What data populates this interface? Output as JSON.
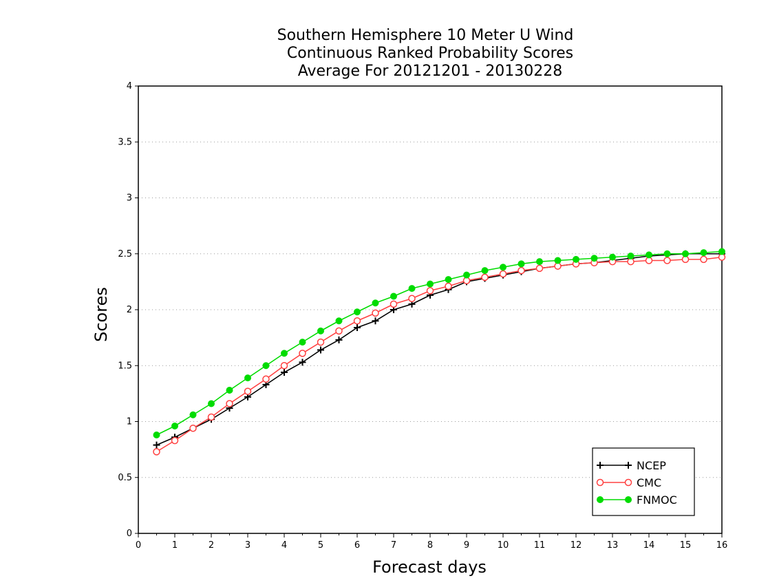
{
  "chart_data": {
    "type": "line",
    "title": [
      "Southern Hemisphere 10 Meter U Wind",
      "Continuous Ranked Probability Scores",
      "Average For 20121201 - 20130228"
    ],
    "xlabel": "Forecast days",
    "ylabel": "Scores",
    "xlim": [
      0,
      16
    ],
    "ylim": [
      0,
      4
    ],
    "x_ticks": [
      0,
      1,
      2,
      3,
      4,
      5,
      6,
      7,
      8,
      9,
      10,
      11,
      12,
      13,
      14,
      15,
      16
    ],
    "y_ticks": [
      0,
      0.5,
      1,
      1.5,
      2,
      2.5,
      3,
      3.5,
      4
    ],
    "grid": "horizontal-dotted",
    "legend_position": "bottom-right",
    "x": [
      0.5,
      1,
      1.5,
      2,
      2.5,
      3,
      3.5,
      4,
      4.5,
      5,
      5.5,
      6,
      6.5,
      7,
      7.5,
      8,
      8.5,
      9,
      9.5,
      10,
      10.5,
      11,
      11.5,
      12,
      12.5,
      13,
      13.5,
      14,
      14.5,
      15,
      15.5,
      16
    ],
    "series": [
      {
        "name": "NCEP",
        "color": "#000000",
        "marker": "plus",
        "values": [
          0.79,
          0.86,
          0.94,
          1.02,
          1.12,
          1.22,
          1.33,
          1.44,
          1.53,
          1.64,
          1.73,
          1.84,
          1.9,
          2.0,
          2.05,
          2.13,
          2.18,
          2.25,
          2.28,
          2.31,
          2.34,
          2.37,
          2.39,
          2.41,
          2.42,
          2.44,
          2.46,
          2.48,
          2.49,
          2.5,
          2.5,
          2.5
        ]
      },
      {
        "name": "CMC",
        "color": "#ff4040",
        "marker": "open-circle",
        "values": [
          0.73,
          0.83,
          0.94,
          1.04,
          1.16,
          1.27,
          1.38,
          1.5,
          1.61,
          1.71,
          1.81,
          1.9,
          1.97,
          2.05,
          2.1,
          2.17,
          2.21,
          2.26,
          2.29,
          2.32,
          2.35,
          2.37,
          2.39,
          2.41,
          2.42,
          2.43,
          2.43,
          2.44,
          2.44,
          2.45,
          2.45,
          2.47
        ]
      },
      {
        "name": "FNMOC",
        "color": "#00dc00",
        "marker": "filled-circle",
        "values": [
          0.88,
          0.96,
          1.06,
          1.16,
          1.28,
          1.39,
          1.5,
          1.61,
          1.71,
          1.81,
          1.9,
          1.98,
          2.06,
          2.12,
          2.19,
          2.23,
          2.27,
          2.31,
          2.35,
          2.38,
          2.41,
          2.43,
          2.44,
          2.45,
          2.46,
          2.47,
          2.48,
          2.49,
          2.5,
          2.5,
          2.51,
          2.52
        ]
      }
    ]
  }
}
